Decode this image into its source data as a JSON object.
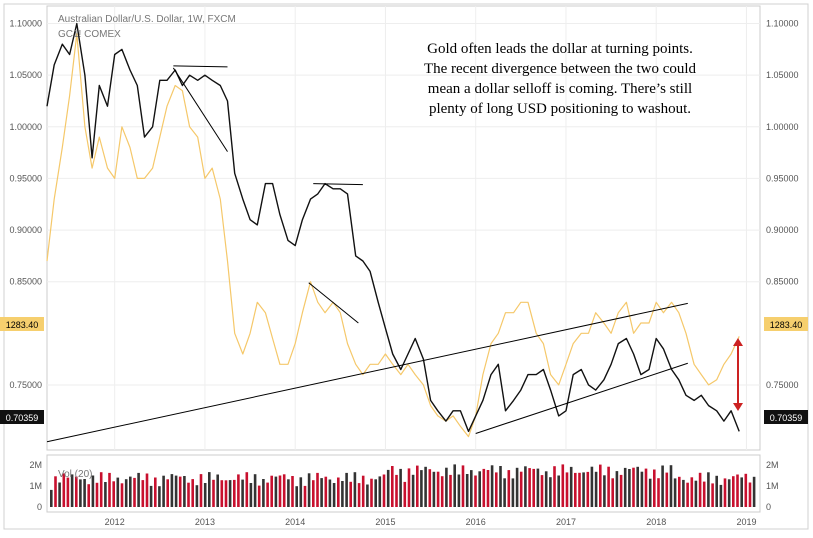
{
  "chart_data": {
    "type": "line",
    "header": {
      "symbol_line": "Australian Dollar/U.S. Dollar, 1W, FXCM",
      "gold_symbol": "GC1! COMEX"
    },
    "annotation": [
      "Gold often leads the dollar at turning points.",
      "The recent divergence between the two could",
      "mean a dollar selloff is coming. There’s still",
      "plenty of long USD positioning to washout."
    ],
    "x_ticks": [
      "2012",
      "2013",
      "2014",
      "2015",
      "2016",
      "2017",
      "2018",
      "2019"
    ],
    "y_ticks": [
      "1.10000",
      "1.05000",
      "1.00000",
      "0.95000",
      "0.90000",
      "0.85000",
      "0.75000"
    ],
    "xlim": [
      2011.25,
      2019.15
    ],
    "ylim": [
      0.687,
      1.117
    ],
    "price_badges": {
      "gold": "1283.40",
      "aud": "0.70359"
    },
    "volume": {
      "label": "Vol (20)",
      "ticks": [
        "2M",
        "1M",
        "0"
      ]
    },
    "series": [
      {
        "name": "Australian Dollar/U.S. Dollar",
        "color": "#111111",
        "x": [
          2011.25,
          2011.33,
          2011.42,
          2011.5,
          2011.58,
          2011.67,
          2011.75,
          2011.83,
          2011.92,
          2012.0,
          2012.08,
          2012.17,
          2012.25,
          2012.33,
          2012.42,
          2012.5,
          2012.58,
          2012.67,
          2012.75,
          2012.83,
          2012.92,
          2013.0,
          2013.08,
          2013.17,
          2013.25,
          2013.33,
          2013.42,
          2013.5,
          2013.58,
          2013.67,
          2013.75,
          2013.83,
          2013.92,
          2014.0,
          2014.08,
          2014.17,
          2014.25,
          2014.33,
          2014.42,
          2014.5,
          2014.58,
          2014.67,
          2014.75,
          2014.83,
          2014.92,
          2015.0,
          2015.08,
          2015.17,
          2015.25,
          2015.33,
          2015.42,
          2015.5,
          2015.58,
          2015.67,
          2015.75,
          2015.83,
          2015.92,
          2016.0,
          2016.08,
          2016.17,
          2016.25,
          2016.33,
          2016.42,
          2016.5,
          2016.58,
          2016.67,
          2016.75,
          2016.83,
          2016.92,
          2017.0,
          2017.08,
          2017.17,
          2017.25,
          2017.33,
          2017.42,
          2017.5,
          2017.58,
          2017.67,
          2017.75,
          2017.83,
          2017.92,
          2018.0,
          2018.08,
          2018.17,
          2018.25,
          2018.33,
          2018.42,
          2018.5,
          2018.58,
          2018.67,
          2018.75,
          2018.83,
          2018.92
        ],
        "values": [
          1.02,
          1.06,
          1.08,
          1.07,
          1.1,
          1.05,
          0.97,
          1.04,
          1.02,
          1.07,
          1.075,
          1.055,
          1.04,
          0.99,
          1.0,
          1.045,
          1.045,
          1.055,
          1.04,
          1.05,
          1.045,
          1.05,
          1.045,
          1.04,
          1.025,
          0.955,
          0.93,
          0.91,
          0.905,
          0.945,
          0.945,
          0.915,
          0.89,
          0.885,
          0.91,
          0.93,
          0.935,
          0.945,
          0.94,
          0.94,
          0.935,
          0.875,
          0.87,
          0.86,
          0.83,
          0.805,
          0.78,
          0.765,
          0.78,
          0.795,
          0.775,
          0.735,
          0.725,
          0.715,
          0.725,
          0.725,
          0.705,
          0.72,
          0.735,
          0.76,
          0.77,
          0.725,
          0.735,
          0.745,
          0.76,
          0.76,
          0.765,
          0.745,
          0.72,
          0.725,
          0.76,
          0.765,
          0.75,
          0.745,
          0.755,
          0.77,
          0.79,
          0.795,
          0.78,
          0.76,
          0.765,
          0.795,
          0.785,
          0.765,
          0.755,
          0.74,
          0.735,
          0.74,
          0.73,
          0.725,
          0.715,
          0.725,
          0.705
        ]
      },
      {
        "name": "GC1! COMEX",
        "color": "#f5c86a",
        "x": [
          2011.25,
          2011.33,
          2011.42,
          2011.5,
          2011.58,
          2011.67,
          2011.75,
          2011.83,
          2011.92,
          2012.0,
          2012.08,
          2012.17,
          2012.25,
          2012.33,
          2012.42,
          2012.5,
          2012.58,
          2012.67,
          2012.75,
          2012.83,
          2012.92,
          2013.0,
          2013.08,
          2013.17,
          2013.25,
          2013.33,
          2013.42,
          2013.5,
          2013.58,
          2013.67,
          2013.75,
          2013.83,
          2013.92,
          2014.0,
          2014.08,
          2014.17,
          2014.25,
          2014.33,
          2014.42,
          2014.5,
          2014.58,
          2014.67,
          2014.75,
          2014.83,
          2014.92,
          2015.0,
          2015.08,
          2015.17,
          2015.25,
          2015.33,
          2015.42,
          2015.5,
          2015.58,
          2015.67,
          2015.75,
          2015.83,
          2015.92,
          2016.0,
          2016.08,
          2016.17,
          2016.25,
          2016.33,
          2016.42,
          2016.5,
          2016.58,
          2016.67,
          2016.75,
          2016.83,
          2016.92,
          2017.0,
          2017.08,
          2017.17,
          2017.25,
          2017.33,
          2017.42,
          2017.5,
          2017.58,
          2017.67,
          2017.75,
          2017.83,
          2017.92,
          2018.0,
          2018.08,
          2018.17,
          2018.25,
          2018.33,
          2018.42,
          2018.5,
          2018.58,
          2018.67,
          2018.75,
          2018.83,
          2018.92
        ],
        "values": [
          0.87,
          0.93,
          0.98,
          1.03,
          1.09,
          1.0,
          0.96,
          0.99,
          0.96,
          0.95,
          1.0,
          0.98,
          0.95,
          0.95,
          0.96,
          0.99,
          1.02,
          1.04,
          1.035,
          1.0,
          0.99,
          0.95,
          0.96,
          0.93,
          0.87,
          0.8,
          0.78,
          0.8,
          0.83,
          0.82,
          0.795,
          0.77,
          0.77,
          0.79,
          0.82,
          0.85,
          0.83,
          0.82,
          0.83,
          0.82,
          0.79,
          0.77,
          0.76,
          0.77,
          0.77,
          0.78,
          0.77,
          0.76,
          0.77,
          0.76,
          0.75,
          0.73,
          0.72,
          0.715,
          0.72,
          0.71,
          0.7,
          0.72,
          0.76,
          0.79,
          0.8,
          0.82,
          0.82,
          0.83,
          0.83,
          0.8,
          0.79,
          0.76,
          0.75,
          0.77,
          0.79,
          0.8,
          0.8,
          0.82,
          0.81,
          0.8,
          0.82,
          0.83,
          0.8,
          0.81,
          0.81,
          0.83,
          0.82,
          0.83,
          0.82,
          0.8,
          0.77,
          0.76,
          0.75,
          0.755,
          0.77,
          0.78,
          0.797
        ]
      }
    ],
    "trendlines": [
      {
        "x": [
          2011.25,
          2018.35
        ],
        "y": [
          0.695,
          0.829
        ]
      },
      {
        "x": [
          2016.0,
          2018.35
        ],
        "y": [
          0.703,
          0.771
        ]
      },
      {
        "x": [
          2012.65,
          2013.25
        ],
        "y": [
          1.057,
          0.976
        ]
      },
      {
        "x": [
          2012.65,
          2013.25
        ],
        "y": [
          1.059,
          1.058
        ]
      },
      {
        "x": [
          2014.2,
          2014.75
        ],
        "y": [
          0.945,
          0.944
        ]
      },
      {
        "x": [
          2014.15,
          2014.7
        ],
        "y": [
          0.849,
          0.81
        ]
      }
    ]
  }
}
